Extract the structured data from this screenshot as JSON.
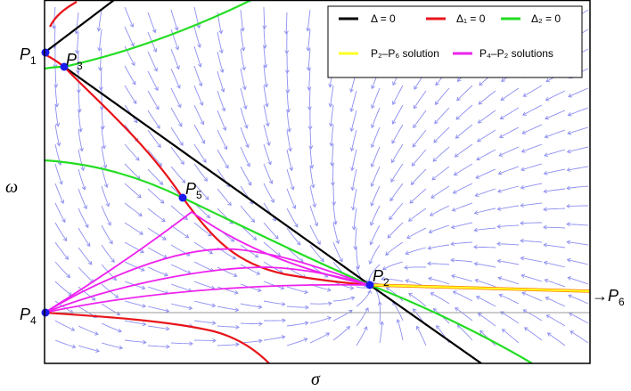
{
  "axes": {
    "xlabel": "σ",
    "ylabel": "ω"
  },
  "points": [
    {
      "id": "P1",
      "letter": "P",
      "sub": "1"
    },
    {
      "id": "P3",
      "letter": "P",
      "sub": "3"
    },
    {
      "id": "P5",
      "letter": "P",
      "sub": "5"
    },
    {
      "id": "P2",
      "letter": "P",
      "sub": "2"
    },
    {
      "id": "P4",
      "letter": "P",
      "sub": "4"
    }
  ],
  "offscreen": {
    "arrow": "→",
    "letter": "P",
    "sub": "6"
  },
  "legend": [
    {
      "label": "Δ = 0",
      "color": "#000000"
    },
    {
      "label": "Δ₁ = 0",
      "color": "#e8141a"
    },
    {
      "label": "Δ₂ = 0",
      "color": "#22dd22"
    },
    {
      "label": "P₂–P₆ solution",
      "color": "#ffff22"
    },
    {
      "label": "P₄–P₂ solutions",
      "color": "#ee22ee"
    }
  ],
  "colors": {
    "stream": "#8d8ff0",
    "point": "#1a1aee",
    "frame": "#000000"
  }
}
